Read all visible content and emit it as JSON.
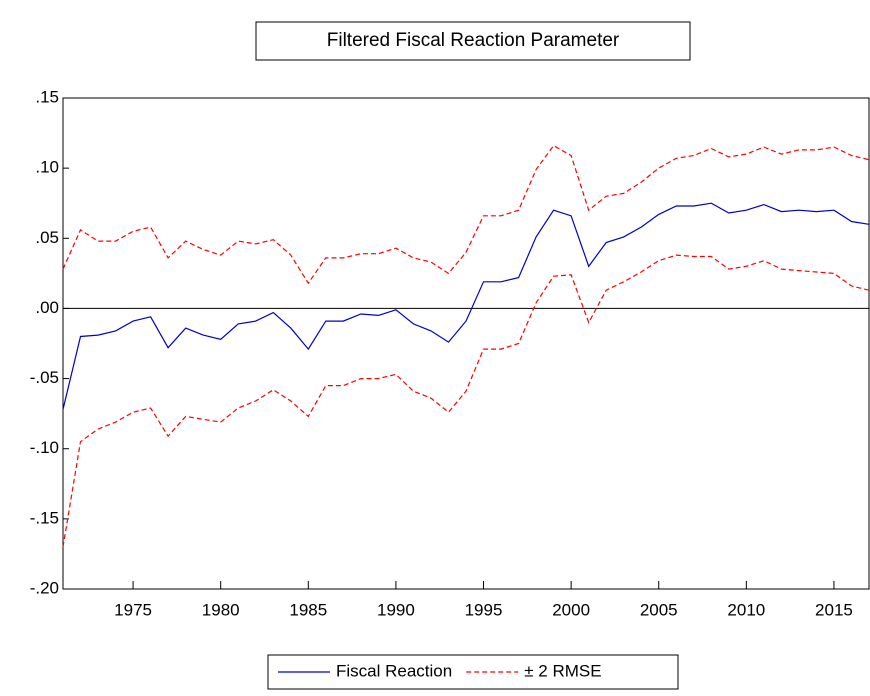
{
  "chart_data": {
    "type": "line",
    "title": "Filtered Fiscal Reaction Parameter",
    "x": [
      1971,
      1972,
      1973,
      1974,
      1975,
      1976,
      1977,
      1978,
      1979,
      1980,
      1981,
      1982,
      1983,
      1984,
      1985,
      1986,
      1987,
      1988,
      1989,
      1990,
      1991,
      1992,
      1993,
      1994,
      1995,
      1996,
      1997,
      1998,
      1999,
      2000,
      2001,
      2002,
      2003,
      2004,
      2005,
      2006,
      2007,
      2008,
      2009,
      2010,
      2011,
      2012,
      2013,
      2014,
      2015,
      2016,
      2017
    ],
    "series": [
      {
        "name": "Fiscal Reaction",
        "color": "#0000cc",
        "dash": false,
        "values": [
          -0.072,
          -0.02,
          -0.019,
          -0.016,
          -0.009,
          -0.006,
          -0.028,
          -0.014,
          -0.019,
          -0.022,
          -0.011,
          -0.009,
          -0.003,
          -0.014,
          -0.029,
          -0.009,
          -0.009,
          -0.004,
          -0.005,
          -0.001,
          -0.011,
          -0.016,
          -0.024,
          -0.009,
          0.019,
          0.019,
          0.022,
          0.051,
          0.07,
          0.066,
          0.03,
          0.047,
          0.051,
          0.058,
          0.067,
          0.073,
          0.073,
          0.075,
          0.068,
          0.07,
          0.074,
          0.069,
          0.07,
          0.069,
          0.07,
          0.062,
          0.06
        ]
      },
      {
        "name": "± 2 RMSE",
        "color": "#ff0000",
        "dash": true,
        "upper": [
          0.028,
          0.056,
          0.048,
          0.048,
          0.055,
          0.058,
          0.036,
          0.048,
          0.042,
          0.038,
          0.048,
          0.046,
          0.049,
          0.038,
          0.018,
          0.036,
          0.036,
          0.039,
          0.039,
          0.043,
          0.036,
          0.033,
          0.025,
          0.04,
          0.066,
          0.066,
          0.07,
          0.099,
          0.116,
          0.109,
          0.07,
          0.08,
          0.082,
          0.09,
          0.1,
          0.107,
          0.109,
          0.114,
          0.108,
          0.11,
          0.115,
          0.11,
          0.113,
          0.113,
          0.115,
          0.109,
          0.106
        ],
        "lower": [
          -0.17,
          -0.095,
          -0.086,
          -0.081,
          -0.074,
          -0.071,
          -0.091,
          -0.077,
          -0.079,
          -0.081,
          -0.071,
          -0.066,
          -0.058,
          -0.066,
          -0.077,
          -0.055,
          -0.055,
          -0.05,
          -0.05,
          -0.047,
          -0.059,
          -0.064,
          -0.074,
          -0.059,
          -0.029,
          -0.029,
          -0.025,
          0.004,
          0.023,
          0.024,
          -0.01,
          0.013,
          0.019,
          0.026,
          0.034,
          0.038,
          0.037,
          0.037,
          0.028,
          0.03,
          0.034,
          0.028,
          0.027,
          0.026,
          0.025,
          0.016,
          0.013
        ]
      }
    ],
    "xlim": [
      1971,
      2017
    ],
    "xticks": [
      1975,
      1980,
      1985,
      1990,
      1995,
      2000,
      2005,
      2010,
      2015
    ],
    "ylim": [
      -0.2,
      0.15
    ],
    "yticks": [
      {
        "value": 0.15,
        "label": ".15"
      },
      {
        "value": 0.1,
        "label": ".10"
      },
      {
        "value": 0.05,
        "label": ".05"
      },
      {
        "value": 0,
        "label": ".00"
      },
      {
        "value": -0.05,
        "label": "-.05"
      },
      {
        "value": -0.1,
        "label": "-.10"
      },
      {
        "value": -0.15,
        "label": "-.15"
      },
      {
        "value": -0.2,
        "label": "-.20"
      }
    ],
    "zero_line": true,
    "legend": "bottom"
  }
}
